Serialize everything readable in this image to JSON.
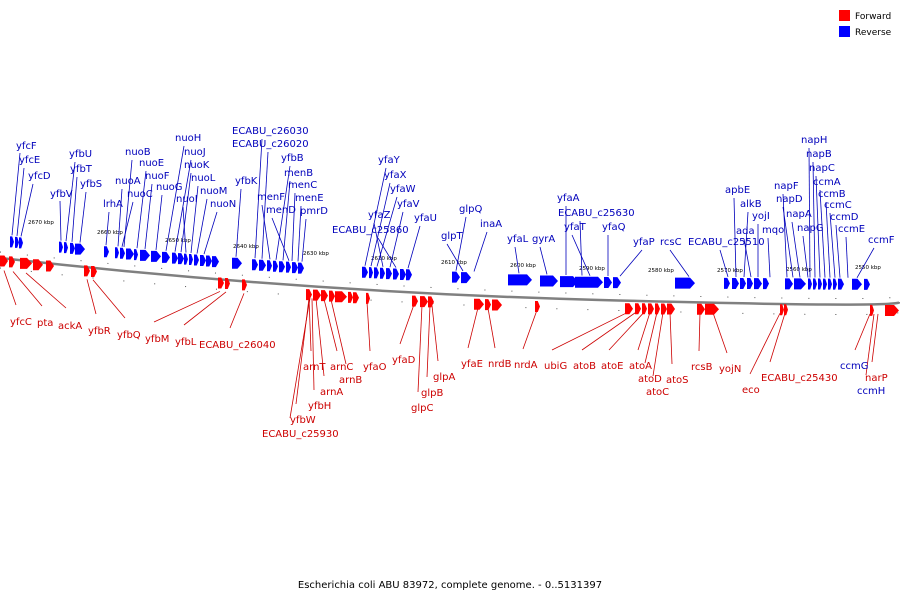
{
  "legend": {
    "items": [
      {
        "label": "Forward",
        "color": "#ff0000"
      },
      {
        "label": "Reverse",
        "color": "#0000ff"
      }
    ]
  },
  "caption": "Escherichia coli ABU 83972, complete genome. - 0..5131397",
  "colors": {
    "forward": "#ff0000",
    "reverse": "#0000ff",
    "forward_label": "#cc0000",
    "reverse_label": "#0000bb",
    "backbone": "#808080"
  },
  "ticks": [
    "2670 kbp",
    "2660 kbp",
    "2650 kbp",
    "2640 kbp",
    "2630 kbp",
    "2620 kbp",
    "2610 kbp",
    "2600 kbp",
    "2590 kbp",
    "2580 kbp",
    "2570 kbp",
    "2560 kbp",
    "2550 kbp"
  ],
  "forward_genes": [
    "yfcC",
    "pta",
    "ackA",
    "yfbR",
    "yfbQ",
    "yfbM",
    "yfbL",
    "ECABU_c26040",
    "arnT",
    "arnA",
    "arnC",
    "arnB",
    "yfbH",
    "yfbW",
    "ECABU_c25930",
    "yfaO",
    "yfaD",
    "glpC",
    "glpB",
    "glpA",
    "yfaE",
    "nrdB",
    "nrdA",
    "ubiG",
    "atoB",
    "atoE",
    "atoA",
    "atoD",
    "atoC",
    "atoS",
    "rcsB",
    "yojN",
    "eco",
    "ECABU_c25430",
    "ccmG",
    "ccmH",
    "narP"
  ],
  "reverse_genes": [
    "yfcF",
    "yfcE",
    "yfcD",
    "yfbV",
    "yfbU",
    "yfbT",
    "yfbS",
    "lrhA",
    "nuoA",
    "nuoB",
    "nuoC",
    "nuoE",
    "nuoF",
    "nuoG",
    "nuoH",
    "nuoJ",
    "nuoK",
    "nuoI",
    "nuoL",
    "nuoM",
    "nuoN",
    "yfbK",
    "ECABU_c26030",
    "ECABU_c26020",
    "yfbB",
    "menF",
    "menB",
    "menD",
    "menC",
    "menE",
    "pmrD",
    "yfaY",
    "yfaX",
    "yfaW",
    "yfaV",
    "yfaZ",
    "ECABU_c25860",
    "yfaU",
    "glpQ",
    "glpT",
    "inaA",
    "yfaL",
    "gyrA",
    "yfaA",
    "ECABU_c25630",
    "yfaT",
    "yfaQ",
    "yfaP",
    "rcsC",
    "ECABU_c25510",
    "apbE",
    "alkB",
    "ada",
    "yojI",
    "mqo",
    "napF",
    "napD",
    "napA",
    "napG",
    "napH",
    "napB",
    "napC",
    "ccmA",
    "ccmB",
    "ccmC",
    "ccmD",
    "ccmE",
    "ccmF"
  ]
}
